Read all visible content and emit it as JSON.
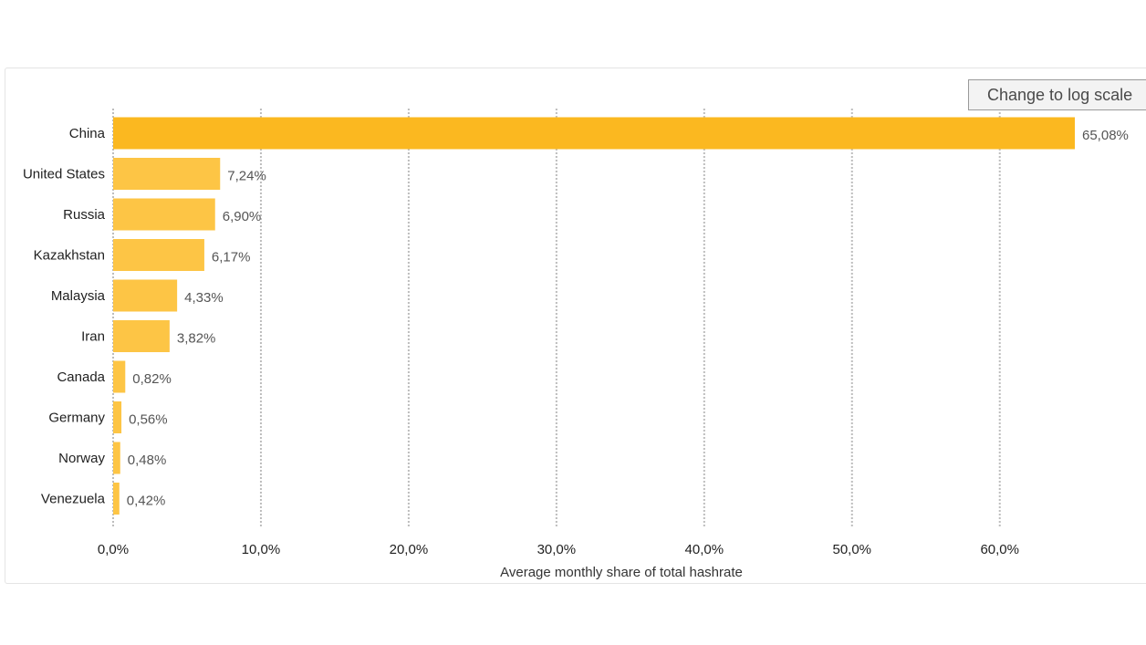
{
  "controls": {
    "log_scale_label": "Change to log scale"
  },
  "colors": {
    "top_bar": "#FBB820",
    "bar": "#FDC545",
    "grid": "#bdbdbd"
  },
  "chart_data": {
    "type": "bar",
    "orientation": "horizontal",
    "categories": [
      "China",
      "United States",
      "Russia",
      "Kazakhstan",
      "Malaysia",
      "Iran",
      "Canada",
      "Germany",
      "Norway",
      "Venezuela"
    ],
    "values": [
      65.08,
      7.24,
      6.9,
      6.17,
      4.33,
      3.82,
      0.82,
      0.56,
      0.48,
      0.42
    ],
    "value_labels": [
      "65,08%",
      "7,24%",
      "6,90%",
      "6,17%",
      "4,33%",
      "3,82%",
      "0,82%",
      "0,56%",
      "0,48%",
      "0,42%"
    ],
    "xticks": [
      0,
      10,
      20,
      30,
      40,
      50,
      60
    ],
    "xtick_labels": [
      "0,0%",
      "10,0%",
      "20,0%",
      "30,0%",
      "40,0%",
      "50,0%",
      "60,0%"
    ],
    "xlim": [
      0,
      65.08
    ],
    "xlabel": "Average monthly share of total hashrate",
    "ylabel": "",
    "title": "",
    "grid": true
  }
}
